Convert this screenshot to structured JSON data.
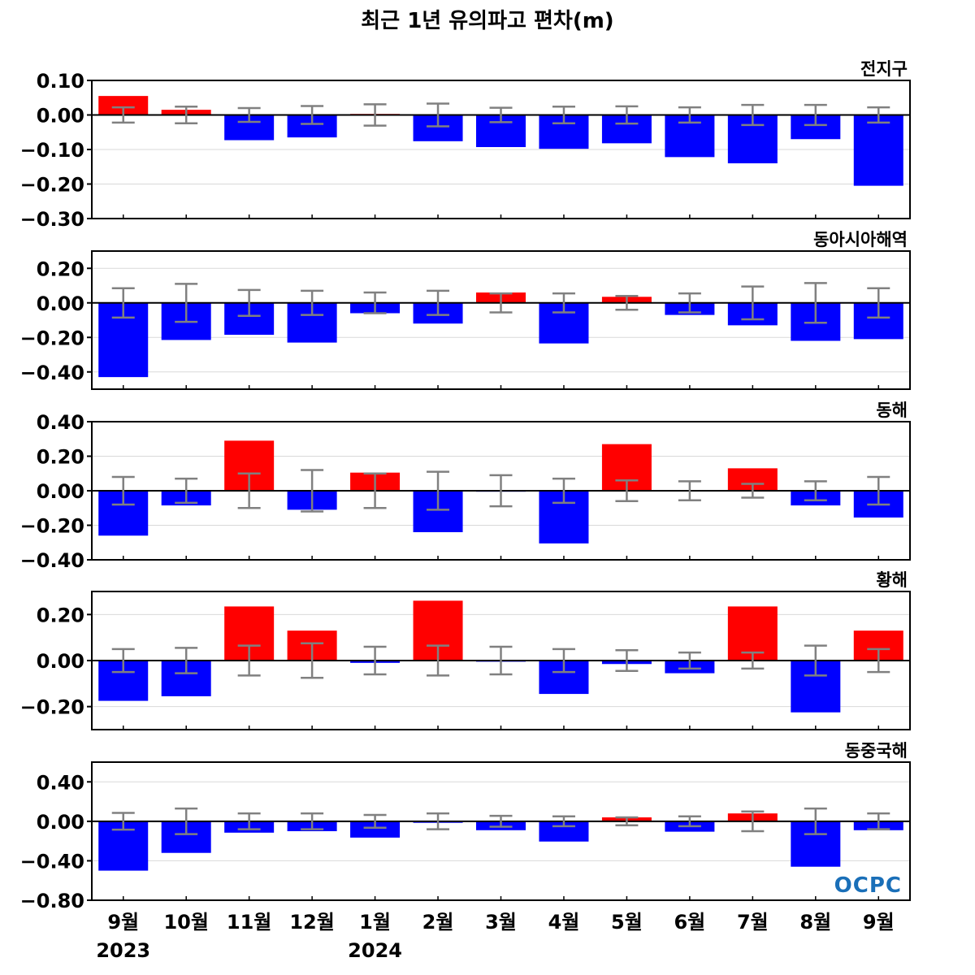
{
  "title": "최근 1년 유의파고 편차(m)",
  "logo": "OCPC",
  "colors": {
    "positive": "#ff0000",
    "negative": "#0000ff",
    "error_bar": "#808080",
    "grid": "#d9d9d9",
    "zero_line": "#000000"
  },
  "chart_data": [
    {
      "type": "bar",
      "label": "전지구",
      "categories": [
        "9월",
        "10월",
        "11월",
        "12월",
        "1월",
        "2월",
        "3월",
        "4월",
        "5월",
        "6월",
        "7월",
        "8월",
        "9월"
      ],
      "values": [
        0.055,
        0.015,
        -0.073,
        -0.065,
        0.003,
        -0.076,
        -0.093,
        -0.098,
        -0.082,
        -0.122,
        -0.14,
        -0.07,
        -0.205
      ],
      "error": [
        0.022,
        0.024,
        0.02,
        0.026,
        0.031,
        0.033,
        0.021,
        0.024,
        0.025,
        0.022,
        0.029,
        0.029,
        0.022
      ],
      "yticks": [
        0.1,
        0.0,
        -0.1,
        -0.2,
        -0.3
      ],
      "ytick_labels": [
        "0.10",
        "0.00",
        "−0.10",
        "−0.20",
        "−0.30"
      ],
      "ylim": [
        -0.3,
        0.1
      ],
      "grid": true
    },
    {
      "type": "bar",
      "label": "동아시아해역",
      "categories": [
        "9월",
        "10월",
        "11월",
        "12월",
        "1월",
        "2월",
        "3월",
        "4월",
        "5월",
        "6월",
        "7월",
        "8월",
        "9월"
      ],
      "values": [
        -0.43,
        -0.215,
        -0.185,
        -0.23,
        -0.06,
        -0.12,
        0.06,
        -0.235,
        0.035,
        -0.07,
        -0.13,
        -0.22,
        -0.21
      ],
      "error": [
        0.085,
        0.11,
        0.075,
        0.07,
        0.06,
        0.07,
        0.055,
        0.055,
        0.04,
        0.055,
        0.095,
        0.115,
        0.085
      ],
      "yticks": [
        0.2,
        0.0,
        -0.2,
        -0.4
      ],
      "ytick_labels": [
        "0.20",
        "0.00",
        "−0.20",
        "−0.40"
      ],
      "ylim": [
        -0.5,
        0.3
      ],
      "grid": true
    },
    {
      "type": "bar",
      "label": "동해",
      "categories": [
        "9월",
        "10월",
        "11월",
        "12월",
        "1월",
        "2월",
        "3월",
        "4월",
        "5월",
        "6월",
        "7월",
        "8월",
        "9월"
      ],
      "values": [
        -0.26,
        -0.085,
        0.29,
        -0.11,
        0.105,
        -0.24,
        -0.005,
        -0.305,
        0.27,
        0.003,
        0.13,
        -0.085,
        -0.155
      ],
      "error": [
        0.08,
        0.07,
        0.1,
        0.12,
        0.1,
        0.11,
        0.09,
        0.07,
        0.06,
        0.055,
        0.04,
        0.055,
        0.08
      ],
      "yticks": [
        0.4,
        0.2,
        0.0,
        -0.2,
        -0.4
      ],
      "ytick_labels": [
        "0.40",
        "0.20",
        "0.00",
        "−0.20",
        "−0.40"
      ],
      "ylim": [
        -0.4,
        0.4
      ],
      "grid": true
    },
    {
      "type": "bar",
      "label": "황해",
      "categories": [
        "9월",
        "10월",
        "11월",
        "12월",
        "1월",
        "2월",
        "3월",
        "4월",
        "5월",
        "6월",
        "7월",
        "8월",
        "9월"
      ],
      "values": [
        -0.175,
        -0.155,
        0.235,
        0.13,
        -0.01,
        0.26,
        -0.005,
        -0.145,
        -0.015,
        -0.055,
        0.235,
        -0.225,
        0.13
      ],
      "error": [
        0.05,
        0.055,
        0.065,
        0.075,
        0.06,
        0.065,
        0.06,
        0.05,
        0.045,
        0.035,
        0.035,
        0.065,
        0.05
      ],
      "yticks": [
        0.2,
        0.0,
        -0.2
      ],
      "ytick_labels": [
        "0.20",
        "0.00",
        "−0.20"
      ],
      "ylim": [
        -0.3,
        0.3
      ],
      "grid": true
    },
    {
      "type": "bar",
      "label": "동중국해",
      "categories": [
        "9월",
        "10월",
        "11월",
        "12월",
        "1월",
        "2월",
        "3월",
        "4월",
        "5월",
        "6월",
        "7월",
        "8월",
        "9월"
      ],
      "values": [
        -0.5,
        -0.32,
        -0.115,
        -0.1,
        -0.165,
        -0.015,
        -0.09,
        -0.205,
        0.04,
        -0.105,
        0.08,
        -0.46,
        -0.09
      ],
      "error": [
        0.085,
        0.13,
        0.08,
        0.08,
        0.065,
        0.08,
        0.055,
        0.05,
        0.04,
        0.05,
        0.1,
        0.13,
        0.08
      ],
      "yticks": [
        0.4,
        0.0,
        -0.4,
        -0.8
      ],
      "ytick_labels": [
        "0.40",
        "0.00",
        "−0.40",
        "−0.80"
      ],
      "ylim": [
        -0.8,
        0.6
      ],
      "grid": true
    }
  ],
  "x_axis": {
    "categories": [
      "9월",
      "10월",
      "11월",
      "12월",
      "1월",
      "2월",
      "3월",
      "4월",
      "5월",
      "6월",
      "7월",
      "8월",
      "9월"
    ],
    "years": [
      {
        "label": "2023",
        "index": 0
      },
      {
        "label": "2024",
        "index": 4
      }
    ]
  }
}
